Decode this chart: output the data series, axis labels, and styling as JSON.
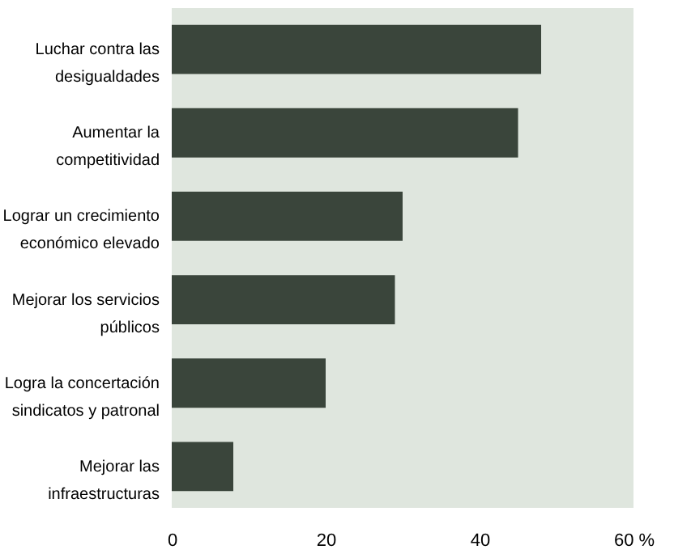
{
  "chart_data": {
    "type": "bar",
    "orientation": "horizontal",
    "categories": [
      "Luchar contra las desigualdades",
      "Aumentar la competitividad",
      "Lograr un crecimiento económico elevado",
      "Mejorar los servicios públicos",
      "Logra la concertación sindicatos y patronal",
      "Mejorar las infraestructuras"
    ],
    "values": [
      48,
      45,
      30,
      29,
      20,
      8
    ],
    "color": "#3a453b",
    "xlim": [
      0,
      60
    ],
    "xticks": [
      0,
      20,
      40,
      {
        "value": 60,
        "label": "60 %"
      }
    ],
    "grid": false
  }
}
